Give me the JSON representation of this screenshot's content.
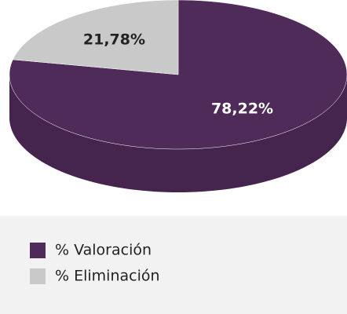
{
  "chart_data": {
    "type": "pie",
    "categories": [
      "% Valoración",
      "% Eliminación"
    ],
    "values": [
      78.22,
      21.78
    ],
    "value_labels": [
      "78,22%",
      "21,78%"
    ],
    "colors": [
      "#4f2b59",
      "#c9c9c9"
    ],
    "label_colors": [
      "#ffffff",
      "#222222"
    ]
  }
}
